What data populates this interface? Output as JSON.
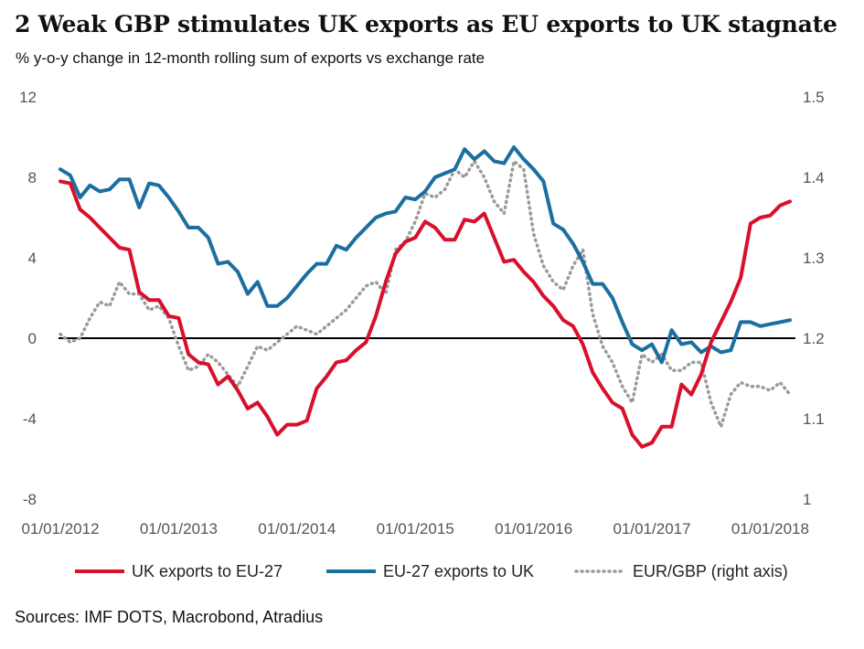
{
  "chart_data": {
    "type": "line",
    "title": "2 Weak GBP stimulates UK exports as EU exports to UK stagnate",
    "subtitle": "% y-o-y change in 12-month rolling sum of exports vs exchange rate",
    "source": "Sources: IMF DOTS, Macrobond, Atradius",
    "x_tick_labels": [
      "01/01/2012",
      "01/01/2013",
      "01/01/2014",
      "01/01/2015",
      "01/01/2016",
      "01/01/2017",
      "01/01/2018"
    ],
    "x_start": "2012-01",
    "x_end": "2018-03",
    "left_axis": {
      "ylim": [
        -8,
        12
      ],
      "ticks": [
        "-8",
        "-4",
        "0",
        "4",
        "8",
        "12"
      ]
    },
    "right_axis": {
      "ylim": [
        1.0,
        1.5
      ],
      "ticks": [
        "1",
        "1.1",
        "1.2",
        "1.3",
        "1.4",
        "1.5"
      ]
    },
    "zero_line": true,
    "series": [
      {
        "name": "UK exports to EU-27",
        "axis": "left",
        "color": "#d7102c",
        "style": "solid",
        "x": [
          0,
          1,
          2,
          3,
          4,
          5,
          6,
          7,
          8,
          9,
          10,
          11,
          12,
          13,
          14,
          15,
          16,
          17,
          18,
          19,
          20,
          21,
          22,
          23,
          24,
          25,
          26,
          27,
          28,
          29,
          30,
          31,
          32,
          33,
          34,
          35,
          36,
          37,
          38,
          39,
          40,
          41,
          42,
          43,
          44,
          45,
          46,
          47,
          48,
          49,
          50,
          51,
          52,
          53,
          54,
          55,
          56,
          57,
          58,
          59,
          60,
          61,
          62,
          63,
          64,
          65,
          66,
          67,
          68,
          69,
          70,
          71,
          72,
          73,
          74
        ],
        "values": [
          7.8,
          7.7,
          6.4,
          6.0,
          5.5,
          5.0,
          4.5,
          4.4,
          2.3,
          1.9,
          1.9,
          1.1,
          1.0,
          -0.8,
          -1.2,
          -1.3,
          -2.3,
          -1.9,
          -2.6,
          -3.5,
          -3.2,
          -3.9,
          -4.8,
          -4.3,
          -4.3,
          -4.1,
          -2.5,
          -1.9,
          -1.2,
          -1.1,
          -0.6,
          -0.2,
          1.1,
          2.8,
          4.2,
          4.8,
          5.0,
          5.8,
          5.5,
          4.9,
          4.9,
          5.9,
          5.8,
          6.2,
          5.0,
          3.8,
          3.9,
          3.3,
          2.8,
          2.1,
          1.6,
          0.9,
          0.6,
          -0.3,
          -1.7,
          -2.5,
          -3.2,
          -3.5,
          -4.8,
          -5.4,
          -5.2,
          -4.4,
          -4.4,
          -2.3,
          -2.8,
          -1.8,
          -0.2,
          0.8,
          1.8,
          3.0,
          5.7,
          6.0,
          6.1,
          6.6,
          6.8
        ]
      },
      {
        "name": "EU-27 exports to UK",
        "axis": "left",
        "color": "#1b6fa0",
        "style": "solid",
        "x": [
          0,
          1,
          2,
          3,
          4,
          5,
          6,
          7,
          8,
          9,
          10,
          11,
          12,
          13,
          14,
          15,
          16,
          17,
          18,
          19,
          20,
          21,
          22,
          23,
          24,
          25,
          26,
          27,
          28,
          29,
          30,
          31,
          32,
          33,
          34,
          35,
          36,
          37,
          38,
          39,
          40,
          41,
          42,
          43,
          44,
          45,
          46,
          47,
          48,
          49,
          50,
          51,
          52,
          53,
          54,
          55,
          56,
          57,
          58,
          59,
          60,
          61,
          62,
          63,
          64,
          65,
          66,
          67,
          68,
          69,
          70,
          71,
          72,
          73,
          74
        ],
        "values": [
          8.4,
          8.1,
          7.0,
          7.6,
          7.3,
          7.4,
          7.9,
          7.9,
          6.5,
          7.7,
          7.6,
          7.0,
          6.3,
          5.5,
          5.5,
          5.0,
          3.7,
          3.8,
          3.3,
          2.2,
          2.8,
          1.6,
          1.6,
          2.0,
          2.6,
          3.2,
          3.7,
          3.7,
          4.6,
          4.4,
          5.0,
          5.5,
          6.0,
          6.2,
          6.3,
          7.0,
          6.9,
          7.3,
          8.0,
          8.2,
          8.4,
          9.4,
          8.9,
          9.3,
          8.8,
          8.7,
          9.5,
          8.9,
          8.4,
          7.8,
          5.7,
          5.4,
          4.7,
          3.8,
          2.7,
          2.7,
          2.0,
          0.8,
          -0.3,
          -0.6,
          -0.3,
          -1.2,
          0.4,
          -0.3,
          -0.2,
          -0.7,
          -0.4,
          -0.7,
          -0.6,
          0.8,
          0.8,
          0.6,
          0.7,
          0.8,
          0.9
        ]
      },
      {
        "name": "EUR/GBP (right axis)",
        "axis": "right",
        "color": "#9a9a9a",
        "style": "dotted",
        "x": [
          0,
          1,
          2,
          3,
          4,
          5,
          6,
          7,
          8,
          9,
          10,
          11,
          12,
          13,
          14,
          15,
          16,
          17,
          18,
          19,
          20,
          21,
          22,
          23,
          24,
          25,
          26,
          27,
          28,
          29,
          30,
          31,
          32,
          33,
          34,
          35,
          36,
          37,
          38,
          39,
          40,
          41,
          42,
          43,
          44,
          45,
          46,
          47,
          48,
          49,
          50,
          51,
          52,
          53,
          54,
          55,
          56,
          57,
          58,
          59,
          60,
          61,
          62,
          63,
          64,
          65,
          66,
          67,
          68,
          69,
          70,
          71,
          72,
          73,
          74
        ],
        "values": [
          1.205,
          1.195,
          1.2,
          1.225,
          1.245,
          1.24,
          1.27,
          1.255,
          1.255,
          1.235,
          1.24,
          1.225,
          1.19,
          1.16,
          1.165,
          1.18,
          1.17,
          1.155,
          1.14,
          1.165,
          1.19,
          1.185,
          1.195,
          1.205,
          1.215,
          1.21,
          1.205,
          1.215,
          1.225,
          1.235,
          1.25,
          1.265,
          1.27,
          1.255,
          1.31,
          1.32,
          1.345,
          1.38,
          1.375,
          1.385,
          1.41,
          1.4,
          1.42,
          1.4,
          1.37,
          1.355,
          1.42,
          1.41,
          1.33,
          1.29,
          1.27,
          1.26,
          1.29,
          1.31,
          1.23,
          1.19,
          1.17,
          1.14,
          1.12,
          1.18,
          1.17,
          1.18,
          1.16,
          1.16,
          1.17,
          1.17,
          1.12,
          1.09,
          1.13,
          1.145,
          1.14,
          1.14,
          1.135,
          1.145,
          1.13
        ]
      }
    ]
  }
}
